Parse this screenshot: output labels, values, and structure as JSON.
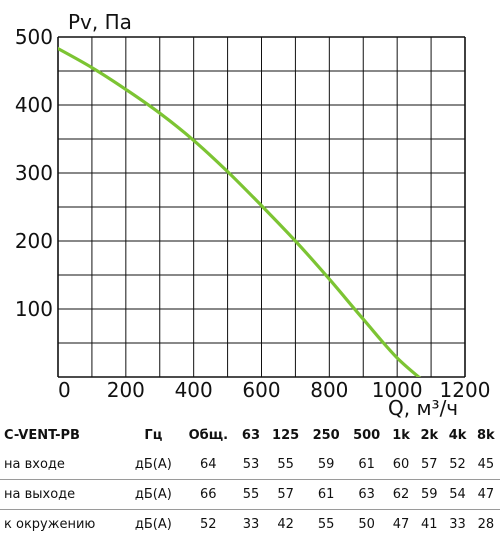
{
  "chart_data": {
    "type": "line",
    "ylabel": "Pv, Па",
    "xlabel": "Q, м³/ч",
    "xlim": [
      0,
      1200
    ],
    "ylim": [
      0,
      500
    ],
    "x_ticks": [
      0,
      200,
      400,
      600,
      800,
      1000,
      1200
    ],
    "y_ticks": [
      100,
      200,
      300,
      400,
      500
    ],
    "grid": true,
    "line_color": "#7cc433",
    "series": [
      {
        "x": [
          0,
          100,
          200,
          300,
          400,
          500,
          600,
          700,
          800,
          900,
          1000,
          1100
        ],
        "y": [
          483,
          455,
          423,
          388,
          348,
          302,
          252,
          200,
          144,
          85,
          28,
          -15
        ]
      }
    ]
  },
  "table": {
    "header": [
      "C-VENT-PB",
      "Гц",
      "Общ.",
      "63",
      "125",
      "250",
      "500",
      "1k",
      "2k",
      "4k",
      "8k"
    ],
    "rows": [
      {
        "label": "на входе",
        "unit": "дБ(A)",
        "values": [
          "64",
          "53",
          "55",
          "59",
          "61",
          "60",
          "57",
          "52",
          "45"
        ]
      },
      {
        "label": "на выходе",
        "unit": "дБ(A)",
        "values": [
          "66",
          "55",
          "57",
          "61",
          "63",
          "62",
          "59",
          "54",
          "47"
        ]
      },
      {
        "label": "к окружению",
        "unit": "дБ(A)",
        "values": [
          "52",
          "33",
          "42",
          "55",
          "50",
          "47",
          "41",
          "33",
          "28"
        ]
      }
    ]
  }
}
